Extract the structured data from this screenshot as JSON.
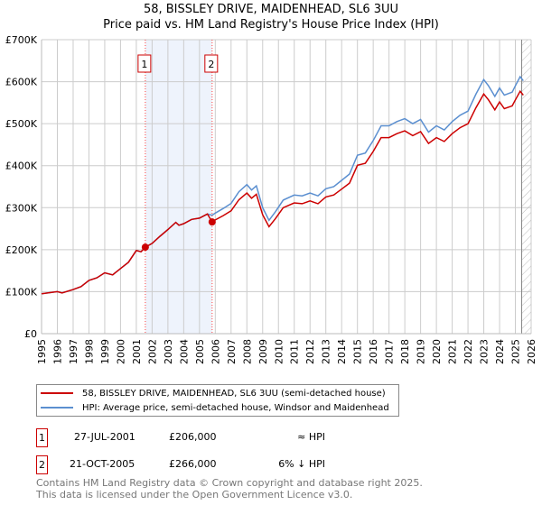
{
  "title": "58, BISSLEY DRIVE, MAIDENHEAD, SL6 3UU",
  "subtitle": "Price paid vs. HM Land Registry's House Price Index (HPI)",
  "chart_data": {
    "type": "line",
    "xlim": [
      1995,
      2026
    ],
    "ylim": [
      0,
      700000
    ],
    "yticks": [
      {
        "v": 0,
        "label": "£0"
      },
      {
        "v": 100000,
        "label": "£100K"
      },
      {
        "v": 200000,
        "label": "£200K"
      },
      {
        "v": 300000,
        "label": "£300K"
      },
      {
        "v": 400000,
        "label": "£400K"
      },
      {
        "v": 500000,
        "label": "£500K"
      },
      {
        "v": 600000,
        "label": "£600K"
      },
      {
        "v": 700000,
        "label": "£700K"
      }
    ],
    "xticks": [
      "1995",
      "1996",
      "1997",
      "1998",
      "1999",
      "2000",
      "2001",
      "2002",
      "2003",
      "2004",
      "2005",
      "2006",
      "2007",
      "2008",
      "2009",
      "2010",
      "2011",
      "2012",
      "2013",
      "2014",
      "2015",
      "2016",
      "2017",
      "2018",
      "2019",
      "2020",
      "2021",
      "2022",
      "2023",
      "2024",
      "2025",
      "2026"
    ],
    "hpi_series": {
      "name": "HPI: Average price, semi-detached house, Windsor and Maidenhead",
      "color": "#5b8fd0",
      "x": [
        1995,
        1996,
        1996.3,
        1997,
        1997.5,
        1998,
        1998.5,
        1999,
        1999.5,
        2000,
        2000.5,
        2001,
        2001.3,
        2001.57,
        2002,
        2002.5,
        2003,
        2003.5,
        2003.7,
        2004,
        2004.5,
        2005,
        2005.5,
        2005.8,
        2006,
        2006.5,
        2007,
        2007.5,
        2008,
        2008.3,
        2008.6,
        2009,
        2009.4,
        2009.8,
        2010.3,
        2011,
        2011.5,
        2012,
        2012.5,
        2013,
        2013.5,
        2014,
        2014.5,
        2015,
        2015.5,
        2016,
        2016.5,
        2017,
        2017.5,
        2018,
        2018.5,
        2019,
        2019.5,
        2020,
        2020.5,
        2021,
        2021.5,
        2022,
        2022.5,
        2023,
        2023.3,
        2023.7,
        2024,
        2024.3,
        2024.8,
        2025,
        2025.3,
        2025.5
      ],
      "y": [
        95000,
        100000,
        97000,
        105000,
        112000,
        127000,
        133000,
        145000,
        140000,
        155000,
        170000,
        198000,
        195000,
        206000,
        215000,
        232000,
        248000,
        265000,
        258000,
        262000,
        272000,
        275000,
        285000,
        282000,
        287000,
        298000,
        310000,
        338000,
        355000,
        342000,
        352000,
        300000,
        270000,
        290000,
        318000,
        330000,
        328000,
        335000,
        328000,
        345000,
        350000,
        365000,
        380000,
        425000,
        430000,
        460000,
        495000,
        495000,
        505000,
        512000,
        500000,
        510000,
        480000,
        495000,
        485000,
        505000,
        520000,
        530000,
        570000,
        605000,
        590000,
        565000,
        585000,
        568000,
        575000,
        590000,
        612000,
        602000
      ]
    },
    "property_series": {
      "name": "58, BISSLEY DRIVE, MAIDENHEAD, SL6 3UU (semi-detached house)",
      "color": "#cc0000"
    },
    "sales": [
      {
        "id": "1",
        "x": 2001.57,
        "y": 206000,
        "date": "27-JUL-2001",
        "price": "£206,000",
        "vs_hpi": "≈ HPI"
      },
      {
        "id": "2",
        "x": 2005.8,
        "y": 266000,
        "date": "21-OCT-2005",
        "price": "£266,000",
        "vs_hpi": "6% ↓ HPI"
      }
    ],
    "hatch_from": 2025.4
  },
  "footer": [
    "Contains HM Land Registry data © Crown copyright and database right 2025.",
    "This data is licensed under the Open Government Licence v3.0."
  ]
}
